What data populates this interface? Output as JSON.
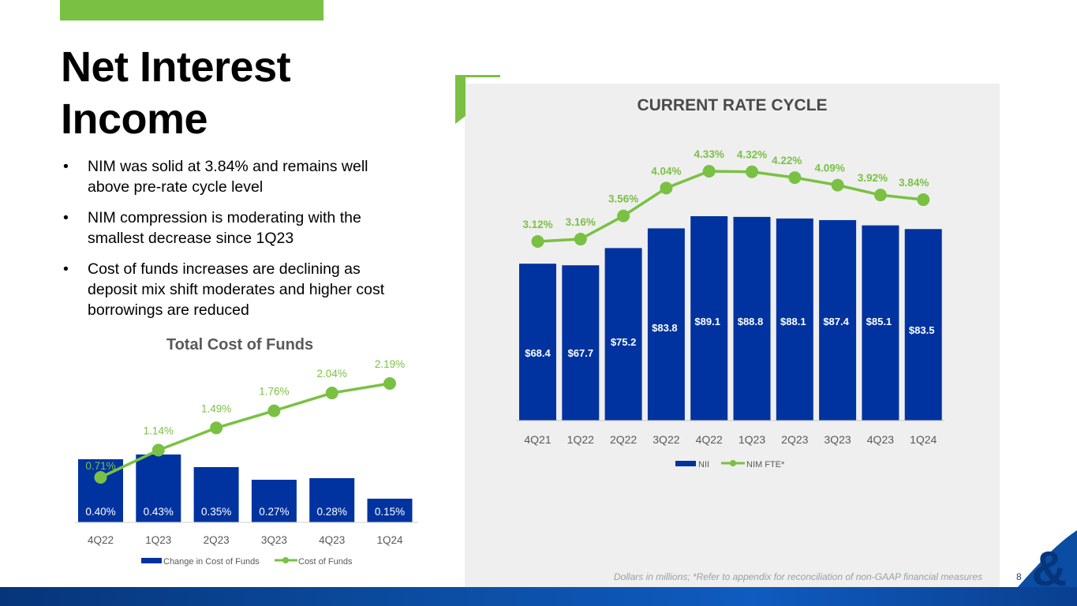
{
  "page": {
    "title_line1": "Net Interest",
    "title_line2": "Income",
    "bullets": [
      "NIM was solid at 3.84% and remains well above pre-rate cycle level",
      "NIM compression is moderating with the smallest decrease since 1Q23",
      "Cost of funds increases are declining as deposit mix shift moderates and higher cost borrowings are reduced"
    ],
    "bullet_symbol": "•",
    "footnote": "Dollars in millions; *Refer to appendix for reconciliation of non-GAAP financial measures",
    "page_number": "8",
    "logo_symbol": "&",
    "colors": {
      "green": "#7ac143",
      "blue": "#0033a0",
      "panel": "#efefef"
    }
  },
  "chart_data": [
    {
      "type": "bar",
      "title": "Total Cost of Funds",
      "categories": [
        "4Q22",
        "1Q23",
        "2Q23",
        "3Q23",
        "4Q23",
        "1Q24"
      ],
      "series": [
        {
          "name": "Change in Cost of Funds",
          "kind": "bar",
          "values": [
            0.4,
            0.43,
            0.35,
            0.27,
            0.28,
            0.15
          ],
          "labels": [
            "0.40%",
            "0.43%",
            "0.35%",
            "0.27%",
            "0.28%",
            "0.15%"
          ]
        },
        {
          "name": "Cost of Funds",
          "kind": "line",
          "values": [
            0.71,
            1.14,
            1.49,
            1.76,
            2.04,
            2.19
          ],
          "labels": [
            "0.71%",
            "1.14%",
            "1.49%",
            "1.76%",
            "2.04%",
            "2.19%"
          ]
        }
      ],
      "legend_position": "bottom"
    },
    {
      "type": "bar",
      "title": "CURRENT RATE CYCLE",
      "categories": [
        "4Q21",
        "1Q22",
        "2Q22",
        "3Q22",
        "4Q22",
        "1Q23",
        "2Q23",
        "3Q23",
        "4Q23",
        "1Q24"
      ],
      "series": [
        {
          "name": "NII",
          "kind": "bar",
          "values": [
            68.4,
            67.7,
            75.2,
            83.8,
            89.1,
            88.8,
            88.1,
            87.4,
            85.1,
            83.5
          ],
          "labels": [
            "$68.4",
            "$67.7",
            "$75.2",
            "$83.8",
            "$89.1",
            "$88.8",
            "$88.1",
            "$87.4",
            "$85.1",
            "$83.5"
          ]
        },
        {
          "name": "NIM FTE*",
          "kind": "line",
          "values": [
            3.12,
            3.16,
            3.56,
            4.04,
            4.33,
            4.32,
            4.22,
            4.09,
            3.92,
            3.84
          ],
          "labels": [
            "3.12%",
            "3.16%",
            "3.56%",
            "4.04%",
            "4.33%",
            "4.32%",
            "4.22%",
            "4.09%",
            "3.92%",
            "3.84%"
          ]
        }
      ],
      "legend_position": "bottom"
    }
  ]
}
